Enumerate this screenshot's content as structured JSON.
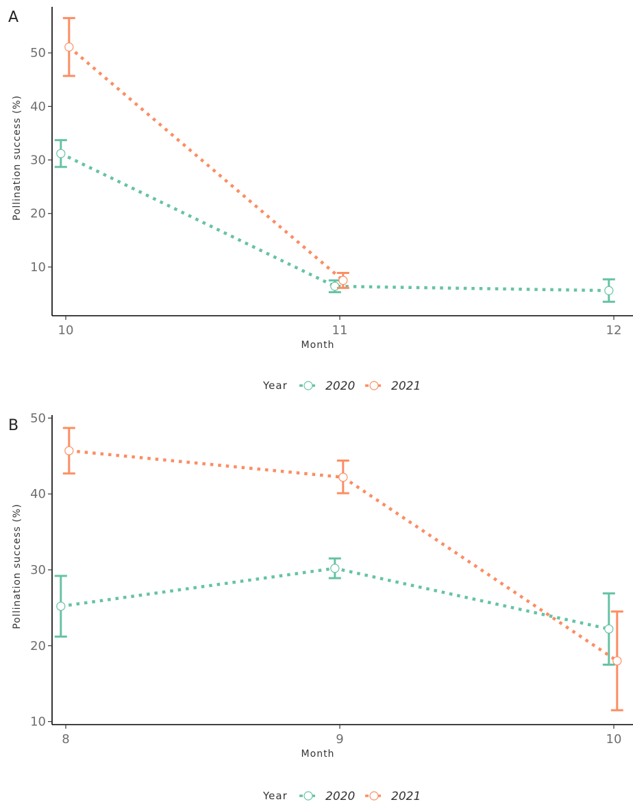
{
  "chart_data": [
    {
      "type": "line",
      "panel_label": "A",
      "xlabel": "Month",
      "ylabel": "Pollination success (%)",
      "x_ticks": [
        10,
        11,
        12
      ],
      "y_ticks": [
        10,
        20,
        30,
        40,
        50
      ],
      "xlim": [
        9.95,
        12.07
      ],
      "ylim": [
        0.9,
        58.6
      ],
      "legend": {
        "title": "Year",
        "position": "bottom"
      },
      "series": [
        {
          "name": "2020",
          "color": "#66c2a5",
          "points": [
            {
              "x": 10,
              "y": 31.2,
              "low": 28.7,
              "high": 33.7
            },
            {
              "x": 11,
              "y": 6.4,
              "low": 5.3,
              "high": 7.5
            },
            {
              "x": 12,
              "y": 5.6,
              "low": 3.5,
              "high": 7.7
            }
          ]
        },
        {
          "name": "2021",
          "color": "#fc8d62",
          "points": [
            {
              "x": 10,
              "y": 51.1,
              "low": 45.7,
              "high": 56.5
            },
            {
              "x": 11,
              "y": 7.5,
              "low": 6.1,
              "high": 8.9
            }
          ]
        }
      ],
      "grid": false
    },
    {
      "type": "line",
      "panel_label": "B",
      "xlabel": "Month",
      "ylabel": "Pollination success (%)",
      "x_ticks": [
        8,
        9,
        10
      ],
      "y_ticks": [
        10,
        20,
        30,
        40,
        50
      ],
      "xlim": [
        7.95,
        10.07
      ],
      "ylim": [
        9.6,
        50.4
      ],
      "legend": {
        "title": "Year",
        "position": "bottom"
      },
      "series": [
        {
          "name": "2020",
          "color": "#66c2a5",
          "points": [
            {
              "x": 8,
              "y": 25.2,
              "low": 21.2,
              "high": 29.2
            },
            {
              "x": 9,
              "y": 30.2,
              "low": 28.9,
              "high": 31.5
            },
            {
              "x": 10,
              "y": 22.2,
              "low": 17.5,
              "high": 26.9
            }
          ]
        },
        {
          "name": "2021",
          "color": "#fc8d62",
          "points": [
            {
              "x": 8,
              "y": 45.7,
              "low": 42.7,
              "high": 48.7
            },
            {
              "x": 9,
              "y": 42.2,
              "low": 40.1,
              "high": 44.4
            },
            {
              "x": 10,
              "y": 18.0,
              "low": 11.5,
              "high": 24.5
            }
          ]
        }
      ],
      "grid": false
    }
  ]
}
